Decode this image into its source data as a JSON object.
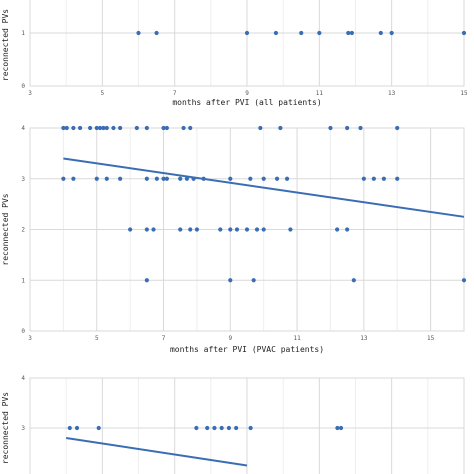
{
  "chart_data": [
    {
      "type": "scatter",
      "xlabel": "months after PVI (all patients)",
      "ylabel": "reconnected PVs",
      "xlim": [
        3,
        15
      ],
      "ylim": [
        0,
        2
      ],
      "xticks": [
        3,
        5,
        7,
        9,
        11,
        13,
        15
      ],
      "yticks": [
        0,
        1
      ],
      "grid": true,
      "series": [
        {
          "points": [
            [
              6,
              1
            ],
            [
              6.5,
              1
            ],
            [
              9,
              1
            ],
            [
              9.8,
              1
            ],
            [
              10.5,
              1
            ],
            [
              11,
              1
            ],
            [
              11.8,
              1
            ],
            [
              11.9,
              1
            ],
            [
              12.7,
              1
            ],
            [
              13,
              1
            ],
            [
              15,
              1
            ]
          ]
        }
      ]
    },
    {
      "type": "scatter",
      "xlabel": "months after PVI (PVAC patients)",
      "ylabel": "reconnected PVs",
      "xlim": [
        3,
        16
      ],
      "ylim": [
        0,
        4
      ],
      "xticks": [
        3,
        5,
        7,
        9,
        11,
        13,
        15
      ],
      "yticks": [
        0,
        1,
        2,
        3,
        4
      ],
      "grid": true,
      "trendline": {
        "x": [
          4,
          16
        ],
        "y": [
          3.4,
          2.25
        ]
      },
      "series": [
        {
          "points": [
            [
              4,
              4
            ],
            [
              4.1,
              4
            ],
            [
              4.3,
              4
            ],
            [
              4.5,
              4
            ],
            [
              4.8,
              4
            ],
            [
              5,
              4
            ],
            [
              5.1,
              4
            ],
            [
              5.2,
              4
            ],
            [
              5.3,
              4
            ],
            [
              5.5,
              4
            ],
            [
              5.7,
              4
            ],
            [
              6.2,
              4
            ],
            [
              6.5,
              4
            ],
            [
              7,
              4
            ],
            [
              7.1,
              4
            ],
            [
              7.6,
              4
            ],
            [
              7.8,
              4
            ],
            [
              9.9,
              4
            ],
            [
              10.5,
              4
            ],
            [
              12,
              4
            ],
            [
              12.5,
              4
            ],
            [
              12.9,
              4
            ],
            [
              14,
              4
            ],
            [
              4,
              3
            ],
            [
              4.3,
              3
            ],
            [
              5,
              3
            ],
            [
              5.3,
              3
            ],
            [
              5.7,
              3
            ],
            [
              6.5,
              3
            ],
            [
              6.8,
              3
            ],
            [
              7,
              3
            ],
            [
              7.1,
              3
            ],
            [
              7.5,
              3
            ],
            [
              7.7,
              3
            ],
            [
              7.9,
              3
            ],
            [
              8.2,
              3
            ],
            [
              9,
              3
            ],
            [
              9.6,
              3
            ],
            [
              10,
              3
            ],
            [
              10.4,
              3
            ],
            [
              10.7,
              3
            ],
            [
              13,
              3
            ],
            [
              13.3,
              3
            ],
            [
              13.6,
              3
            ],
            [
              14,
              3
            ],
            [
              6,
              2
            ],
            [
              6.5,
              2
            ],
            [
              6.7,
              2
            ],
            [
              7.5,
              2
            ],
            [
              7.8,
              2
            ],
            [
              8,
              2
            ],
            [
              8.7,
              2
            ],
            [
              9,
              2
            ],
            [
              9.2,
              2
            ],
            [
              9.5,
              2
            ],
            [
              9.8,
              2
            ],
            [
              10,
              2
            ],
            [
              10.8,
              2
            ],
            [
              12.2,
              2
            ],
            [
              12.5,
              2
            ],
            [
              6.5,
              1
            ],
            [
              9,
              1
            ],
            [
              9.7,
              1
            ],
            [
              12.7,
              1
            ],
            [
              16,
              1
            ]
          ]
        }
      ]
    },
    {
      "type": "scatter",
      "xlabel": "",
      "ylabel": "reconnected PVs",
      "xlim": [
        3,
        15
      ],
      "ylim": [
        2,
        4
      ],
      "xticks": [],
      "yticks": [
        3,
        4
      ],
      "grid": true,
      "trendline": {
        "x": [
          4,
          9
        ],
        "y": [
          2.8,
          2.25
        ]
      },
      "series": [
        {
          "points": [
            [
              4.1,
              3
            ],
            [
              4.3,
              3
            ],
            [
              4.9,
              3
            ],
            [
              7.6,
              3
            ],
            [
              7.9,
              3
            ],
            [
              8.1,
              3
            ],
            [
              8.3,
              3
            ],
            [
              8.5,
              3
            ],
            [
              8.7,
              3
            ],
            [
              9.1,
              3
            ],
            [
              11.5,
              3
            ],
            [
              11.6,
              3
            ]
          ]
        }
      ]
    }
  ]
}
